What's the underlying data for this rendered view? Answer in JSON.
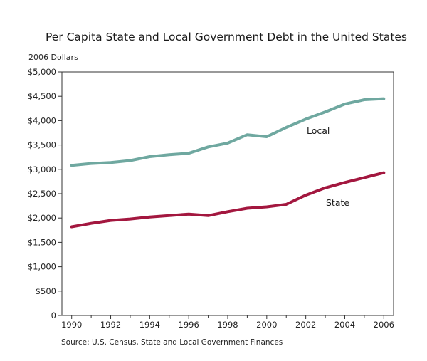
{
  "chart_data": {
    "type": "line",
    "title": "Per Capita State and Local Government Debt in the United States",
    "ylabel": "2006 Dollars",
    "xlabel": "",
    "source": "Source: U.S. Census, State and Local Government Finances",
    "x": [
      1990,
      1991,
      1992,
      1993,
      1994,
      1995,
      1996,
      1997,
      1998,
      1999,
      2000,
      2001,
      2002,
      2003,
      2004,
      2005,
      2006
    ],
    "xlim": [
      1989.5,
      2006.5
    ],
    "ylim": [
      0,
      5000
    ],
    "x_ticks": [
      "1990",
      "1992",
      "1994",
      "1996",
      "1998",
      "2000",
      "2002",
      "2004",
      "2006"
    ],
    "y_ticks": [
      "0",
      "$500",
      "$1,000",
      "$1,500",
      "$2,000",
      "$2,500",
      "$3,000",
      "$3,500",
      "$4,000",
      "$4,500",
      "$5,000"
    ],
    "grid": false,
    "series": [
      {
        "name": "Local",
        "color": "#6fa8a0",
        "values": [
          3080,
          3120,
          3140,
          3180,
          3260,
          3300,
          3330,
          3460,
          3540,
          3710,
          3670,
          3860,
          4030,
          4180,
          4340,
          4430,
          4450
        ]
      },
      {
        "name": "State",
        "color": "#a3173f",
        "values": [
          1820,
          1890,
          1950,
          1980,
          2020,
          2050,
          2080,
          2050,
          2130,
          2200,
          2230,
          2280,
          2470,
          2620,
          2730,
          2830,
          2930
        ]
      }
    ]
  }
}
